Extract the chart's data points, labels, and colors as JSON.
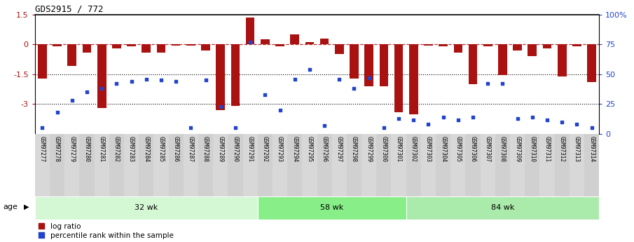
{
  "title": "GDS2915 / 772",
  "samples": [
    "GSM97277",
    "GSM97278",
    "GSM97279",
    "GSM97280",
    "GSM97281",
    "GSM97282",
    "GSM97283",
    "GSM97284",
    "GSM97285",
    "GSM97286",
    "GSM97287",
    "GSM97288",
    "GSM97289",
    "GSM97290",
    "GSM97291",
    "GSM97292",
    "GSM97293",
    "GSM97294",
    "GSM97295",
    "GSM97296",
    "GSM97297",
    "GSM97298",
    "GSM97299",
    "GSM97300",
    "GSM97301",
    "GSM97302",
    "GSM97303",
    "GSM97304",
    "GSM97305",
    "GSM97306",
    "GSM97307",
    "GSM97308",
    "GSM97309",
    "GSM97310",
    "GSM97311",
    "GSM97312",
    "GSM97313",
    "GSM97314"
  ],
  "log_ratio": [
    -1.7,
    -0.1,
    -1.1,
    -0.4,
    -3.2,
    -0.2,
    -0.1,
    -0.4,
    -0.4,
    -0.05,
    -0.05,
    -0.3,
    -3.3,
    -3.1,
    1.35,
    0.25,
    -0.1,
    0.5,
    0.1,
    0.3,
    -0.5,
    -1.7,
    -2.1,
    -2.1,
    -3.4,
    -3.5,
    -0.05,
    -0.1,
    -0.4,
    -2.0,
    -0.1,
    -1.55,
    -0.3,
    -0.6,
    -0.2,
    -1.6,
    -0.1,
    -1.9
  ],
  "percentile": [
    5,
    18,
    28,
    35,
    38,
    42,
    44,
    46,
    45,
    44,
    5,
    45,
    23,
    5,
    77,
    33,
    20,
    46,
    54,
    7,
    46,
    38,
    47,
    5,
    13,
    12,
    8,
    14,
    12,
    14,
    42,
    42,
    13,
    14,
    12,
    10,
    8,
    5
  ],
  "groups": [
    {
      "label": "32 wk",
      "start": 0,
      "end": 15,
      "color": "#d4f7d4"
    },
    {
      "label": "58 wk",
      "start": 15,
      "end": 25,
      "color": "#88ee88"
    },
    {
      "label": "84 wk",
      "start": 25,
      "end": 38,
      "color": "#aaeaaa"
    }
  ],
  "ylim": [
    -4.5,
    1.5
  ],
  "yticks": [
    1.5,
    0.0,
    -1.5,
    -3.0
  ],
  "ytick_labels": [
    "1.5",
    "0",
    "-1.5",
    "-3"
  ],
  "right_yticks_pct": [
    100,
    75,
    50,
    25,
    0
  ],
  "right_ytick_labels": [
    "100%",
    "75",
    "50",
    "25",
    "0"
  ],
  "hlines": [
    -1.5,
    -3.0
  ],
  "bar_color": "#aa1111",
  "dot_color": "#2244cc",
  "background_color": "#ffffff",
  "xlabels_bg": "#d0d0d0",
  "age_label": "age",
  "legend_log_ratio": "log ratio",
  "legend_percentile": "percentile rank within the sample"
}
